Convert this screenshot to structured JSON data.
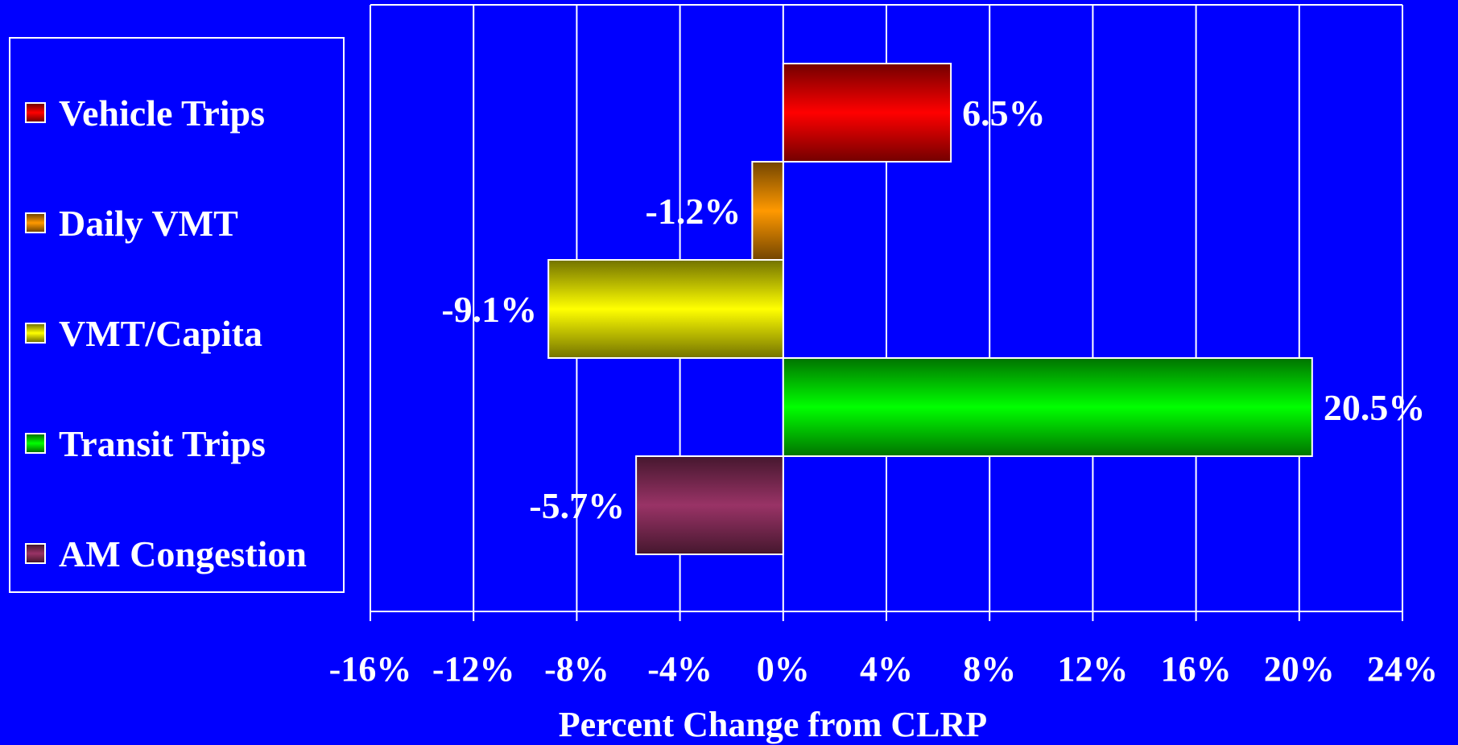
{
  "chart_data": {
    "type": "bar",
    "orientation": "horizontal",
    "xlabel": "Percent Change from CLRP",
    "xlim": [
      -16,
      24
    ],
    "x_ticks": [
      -16,
      -12,
      -8,
      -4,
      0,
      4,
      8,
      12,
      16,
      20,
      24
    ],
    "tick_suffix": "%",
    "grid": true,
    "legend_position": "left",
    "series": [
      {
        "name": "Vehicle Trips",
        "value": 6.5,
        "label": "6.5%",
        "color": "#ff0000"
      },
      {
        "name": "Daily VMT",
        "value": -1.2,
        "label": "-1.2%",
        "color": "#ff9900"
      },
      {
        "name": "VMT/Capita",
        "value": -9.1,
        "label": "-9.1%",
        "color": "#ffff00"
      },
      {
        "name": "Transit Trips",
        "value": 20.5,
        "label": "20.5%",
        "color": "#00ff00"
      },
      {
        "name": "AM Congestion",
        "value": -5.7,
        "label": "-5.7%",
        "color": "#993366"
      }
    ]
  },
  "colors": {
    "background": "#0000ff",
    "grid": "#ffffff",
    "text": "#ffffff"
  }
}
